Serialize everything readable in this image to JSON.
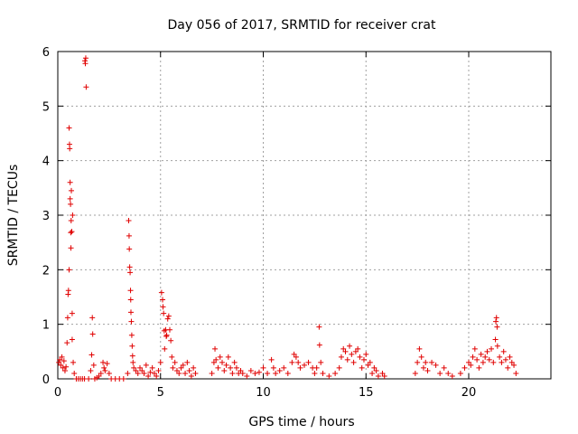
{
  "chart_data": {
    "type": "scatter",
    "title": "Day 056 of 2017, SRMTID for receiver crat",
    "xlabel": "GPS time / hours",
    "ylabel": "SRMTID / TECUs",
    "xlim": [
      0,
      24
    ],
    "ylim": [
      0,
      6
    ],
    "xticks": [
      0,
      5,
      10,
      15,
      20
    ],
    "xtick_labels": [
      "0",
      "5",
      "10",
      "15",
      "20"
    ],
    "yticks": [
      0,
      1,
      2,
      3,
      4,
      5,
      6
    ],
    "ytick_labels": [
      "0",
      "1",
      "2",
      "3",
      "4",
      "5",
      "6"
    ],
    "grid": true,
    "marker": "plus",
    "color": "#e00000",
    "series": [
      {
        "name": "SRMTID",
        "points": [
          [
            0.05,
            0.3
          ],
          [
            0.1,
            0.35
          ],
          [
            0.15,
            0.25
          ],
          [
            0.2,
            0.4
          ],
          [
            0.25,
            0.2
          ],
          [
            0.3,
            0.33
          ],
          [
            0.35,
            0.15
          ],
          [
            0.4,
            0.22
          ],
          [
            0.45,
            0.66
          ],
          [
            0.48,
            1.12
          ],
          [
            0.5,
            1.55
          ],
          [
            0.52,
            1.62
          ],
          [
            0.55,
            2.0
          ],
          [
            0.55,
            4.6
          ],
          [
            0.57,
            4.3
          ],
          [
            0.58,
            4.22
          ],
          [
            0.6,
            3.3
          ],
          [
            0.6,
            3.6
          ],
          [
            0.62,
            3.2
          ],
          [
            0.63,
            2.68
          ],
          [
            0.64,
            2.4
          ],
          [
            0.65,
            2.9
          ],
          [
            0.66,
            3.45
          ],
          [
            0.68,
            2.7
          ],
          [
            0.7,
            1.2
          ],
          [
            0.7,
            0.72
          ],
          [
            0.72,
            3.0
          ],
          [
            0.75,
            0.3
          ],
          [
            0.8,
            0.1
          ],
          [
            0.9,
            0.0
          ],
          [
            1.0,
            0.0
          ],
          [
            1.1,
            0.0
          ],
          [
            1.2,
            0.0
          ],
          [
            1.3,
            0.0
          ],
          [
            1.32,
            5.83
          ],
          [
            1.34,
            5.78
          ],
          [
            1.36,
            5.88
          ],
          [
            1.38,
            5.35
          ],
          [
            1.5,
            0.0
          ],
          [
            1.6,
            0.15
          ],
          [
            1.65,
            0.44
          ],
          [
            1.68,
            1.12
          ],
          [
            1.7,
            0.82
          ],
          [
            1.75,
            0.25
          ],
          [
            1.8,
            0.0
          ],
          [
            1.9,
            0.02
          ],
          [
            2.0,
            0.05
          ],
          [
            2.1,
            0.1
          ],
          [
            2.2,
            0.3
          ],
          [
            2.25,
            0.2
          ],
          [
            2.3,
            0.15
          ],
          [
            2.4,
            0.28
          ],
          [
            2.5,
            0.1
          ],
          [
            2.6,
            0.0
          ],
          [
            2.8,
            0.0
          ],
          [
            3.0,
            0.0
          ],
          [
            3.2,
            0.0
          ],
          [
            3.4,
            0.1
          ],
          [
            3.45,
            2.9
          ],
          [
            3.47,
            2.62
          ],
          [
            3.48,
            2.38
          ],
          [
            3.5,
            2.05
          ],
          [
            3.52,
            1.95
          ],
          [
            3.54,
            1.62
          ],
          [
            3.55,
            1.45
          ],
          [
            3.56,
            1.22
          ],
          [
            3.58,
            1.05
          ],
          [
            3.6,
            0.8
          ],
          [
            3.62,
            0.6
          ],
          [
            3.64,
            0.42
          ],
          [
            3.66,
            0.3
          ],
          [
            3.7,
            0.2
          ],
          [
            3.8,
            0.15
          ],
          [
            3.9,
            0.1
          ],
          [
            4.0,
            0.2
          ],
          [
            4.1,
            0.15
          ],
          [
            4.2,
            0.1
          ],
          [
            4.3,
            0.25
          ],
          [
            4.4,
            0.05
          ],
          [
            4.5,
            0.12
          ],
          [
            4.6,
            0.2
          ],
          [
            4.7,
            0.1
          ],
          [
            4.8,
            0.05
          ],
          [
            4.9,
            0.15
          ],
          [
            5.0,
            0.3
          ],
          [
            5.05,
            1.58
          ],
          [
            5.1,
            1.45
          ],
          [
            5.12,
            1.32
          ],
          [
            5.15,
            1.2
          ],
          [
            5.18,
            0.88
          ],
          [
            5.2,
            0.55
          ],
          [
            5.25,
            0.9
          ],
          [
            5.28,
            0.78
          ],
          [
            5.3,
            0.8
          ],
          [
            5.35,
            1.1
          ],
          [
            5.4,
            1.15
          ],
          [
            5.45,
            0.9
          ],
          [
            5.5,
            0.7
          ],
          [
            5.55,
            0.4
          ],
          [
            5.6,
            0.2
          ],
          [
            5.7,
            0.3
          ],
          [
            5.8,
            0.15
          ],
          [
            5.9,
            0.1
          ],
          [
            6.0,
            0.2
          ],
          [
            6.1,
            0.25
          ],
          [
            6.2,
            0.1
          ],
          [
            6.3,
            0.3
          ],
          [
            6.4,
            0.15
          ],
          [
            6.5,
            0.05
          ],
          [
            6.6,
            0.2
          ],
          [
            6.7,
            0.1
          ],
          [
            7.5,
            0.1
          ],
          [
            7.6,
            0.3
          ],
          [
            7.65,
            0.55
          ],
          [
            7.7,
            0.35
          ],
          [
            7.8,
            0.2
          ],
          [
            7.9,
            0.4
          ],
          [
            8.0,
            0.3
          ],
          [
            8.1,
            0.15
          ],
          [
            8.2,
            0.25
          ],
          [
            8.3,
            0.4
          ],
          [
            8.4,
            0.2
          ],
          [
            8.5,
            0.1
          ],
          [
            8.6,
            0.3
          ],
          [
            8.7,
            0.2
          ],
          [
            8.8,
            0.1
          ],
          [
            8.9,
            0.15
          ],
          [
            9.0,
            0.1
          ],
          [
            9.2,
            0.05
          ],
          [
            9.4,
            0.15
          ],
          [
            9.6,
            0.1
          ],
          [
            9.8,
            0.12
          ],
          [
            10.0,
            0.2
          ],
          [
            10.2,
            0.1
          ],
          [
            10.4,
            0.35
          ],
          [
            10.5,
            0.2
          ],
          [
            10.6,
            0.1
          ],
          [
            10.8,
            0.15
          ],
          [
            11.0,
            0.2
          ],
          [
            11.2,
            0.1
          ],
          [
            11.4,
            0.3
          ],
          [
            11.5,
            0.45
          ],
          [
            11.6,
            0.4
          ],
          [
            11.7,
            0.3
          ],
          [
            11.8,
            0.2
          ],
          [
            12.0,
            0.25
          ],
          [
            12.2,
            0.3
          ],
          [
            12.4,
            0.2
          ],
          [
            12.5,
            0.1
          ],
          [
            12.6,
            0.2
          ],
          [
            12.72,
            0.95
          ],
          [
            12.74,
            0.62
          ],
          [
            12.8,
            0.3
          ],
          [
            12.9,
            0.1
          ],
          [
            13.2,
            0.05
          ],
          [
            13.5,
            0.1
          ],
          [
            13.7,
            0.2
          ],
          [
            13.8,
            0.4
          ],
          [
            13.9,
            0.55
          ],
          [
            14.0,
            0.5
          ],
          [
            14.1,
            0.35
          ],
          [
            14.2,
            0.6
          ],
          [
            14.3,
            0.45
          ],
          [
            14.4,
            0.3
          ],
          [
            14.5,
            0.5
          ],
          [
            14.6,
            0.55
          ],
          [
            14.7,
            0.4
          ],
          [
            14.8,
            0.2
          ],
          [
            14.9,
            0.35
          ],
          [
            15.0,
            0.45
          ],
          [
            15.1,
            0.25
          ],
          [
            15.2,
            0.3
          ],
          [
            15.3,
            0.1
          ],
          [
            15.4,
            0.2
          ],
          [
            15.5,
            0.15
          ],
          [
            15.6,
            0.05
          ],
          [
            15.8,
            0.1
          ],
          [
            15.9,
            0.05
          ],
          [
            17.4,
            0.1
          ],
          [
            17.5,
            0.3
          ],
          [
            17.6,
            0.55
          ],
          [
            17.7,
            0.4
          ],
          [
            17.8,
            0.2
          ],
          [
            17.9,
            0.3
          ],
          [
            18.0,
            0.15
          ],
          [
            18.2,
            0.3
          ],
          [
            18.4,
            0.25
          ],
          [
            18.6,
            0.1
          ],
          [
            18.8,
            0.2
          ],
          [
            19.0,
            0.1
          ],
          [
            19.2,
            0.05
          ],
          [
            19.6,
            0.1
          ],
          [
            19.8,
            0.2
          ],
          [
            20.0,
            0.3
          ],
          [
            20.1,
            0.25
          ],
          [
            20.2,
            0.4
          ],
          [
            20.3,
            0.55
          ],
          [
            20.4,
            0.35
          ],
          [
            20.5,
            0.2
          ],
          [
            20.6,
            0.45
          ],
          [
            20.7,
            0.3
          ],
          [
            20.8,
            0.4
          ],
          [
            20.9,
            0.5
          ],
          [
            21.0,
            0.35
          ],
          [
            21.1,
            0.55
          ],
          [
            21.2,
            0.3
          ],
          [
            21.3,
            0.72
          ],
          [
            21.32,
            1.05
          ],
          [
            21.35,
            1.12
          ],
          [
            21.38,
            0.95
          ],
          [
            21.4,
            0.6
          ],
          [
            21.5,
            0.4
          ],
          [
            21.6,
            0.3
          ],
          [
            21.7,
            0.5
          ],
          [
            21.8,
            0.35
          ],
          [
            21.9,
            0.2
          ],
          [
            22.0,
            0.4
          ],
          [
            22.1,
            0.3
          ],
          [
            22.2,
            0.25
          ],
          [
            22.3,
            0.1
          ]
        ]
      }
    ]
  }
}
